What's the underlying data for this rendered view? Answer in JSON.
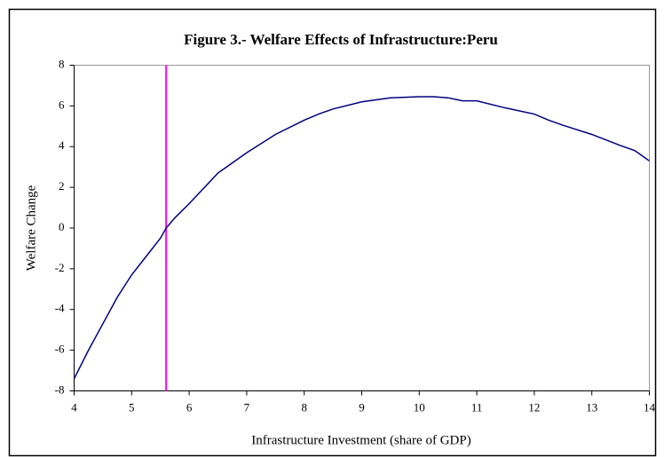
{
  "chart_data": {
    "type": "line",
    "title": "Figure 3.- Welfare Effects of Infrastructure:Peru",
    "xlabel": "Infrastructure Investment (share of GDP)",
    "ylabel": "Welfare Change",
    "x": [
      4,
      4.25,
      4.5,
      4.75,
      5,
      5.25,
      5.5,
      5.6,
      5.75,
      6,
      6.5,
      7,
      7.5,
      8,
      8.25,
      8.5,
      9,
      9.5,
      10,
      10.25,
      10.5,
      10.75,
      11,
      11.5,
      12,
      12.25,
      12.5,
      13,
      13.5,
      13.75,
      14
    ],
    "series": [
      {
        "name": "Welfare Change",
        "color": "#000080",
        "values": [
          -7.4,
          -6.0,
          -4.7,
          -3.4,
          -2.3,
          -1.4,
          -0.5,
          0,
          0.5,
          1.2,
          2.7,
          3.7,
          4.6,
          5.3,
          5.6,
          5.85,
          6.2,
          6.4,
          6.45,
          6.45,
          6.4,
          6.25,
          6.25,
          5.9,
          5.6,
          5.3,
          5.05,
          4.6,
          4.05,
          3.8,
          3.3
        ]
      }
    ],
    "vline": {
      "x": 5.6,
      "color": "#ff00ff"
    },
    "xlim": [
      4,
      14
    ],
    "xticks": [
      4,
      5,
      6,
      7,
      8,
      9,
      10,
      11,
      12,
      13,
      14
    ],
    "ylim": [
      -8,
      8
    ],
    "yticks": [
      -8,
      -6,
      -4,
      -2,
      0,
      2,
      4,
      6,
      8
    ]
  }
}
